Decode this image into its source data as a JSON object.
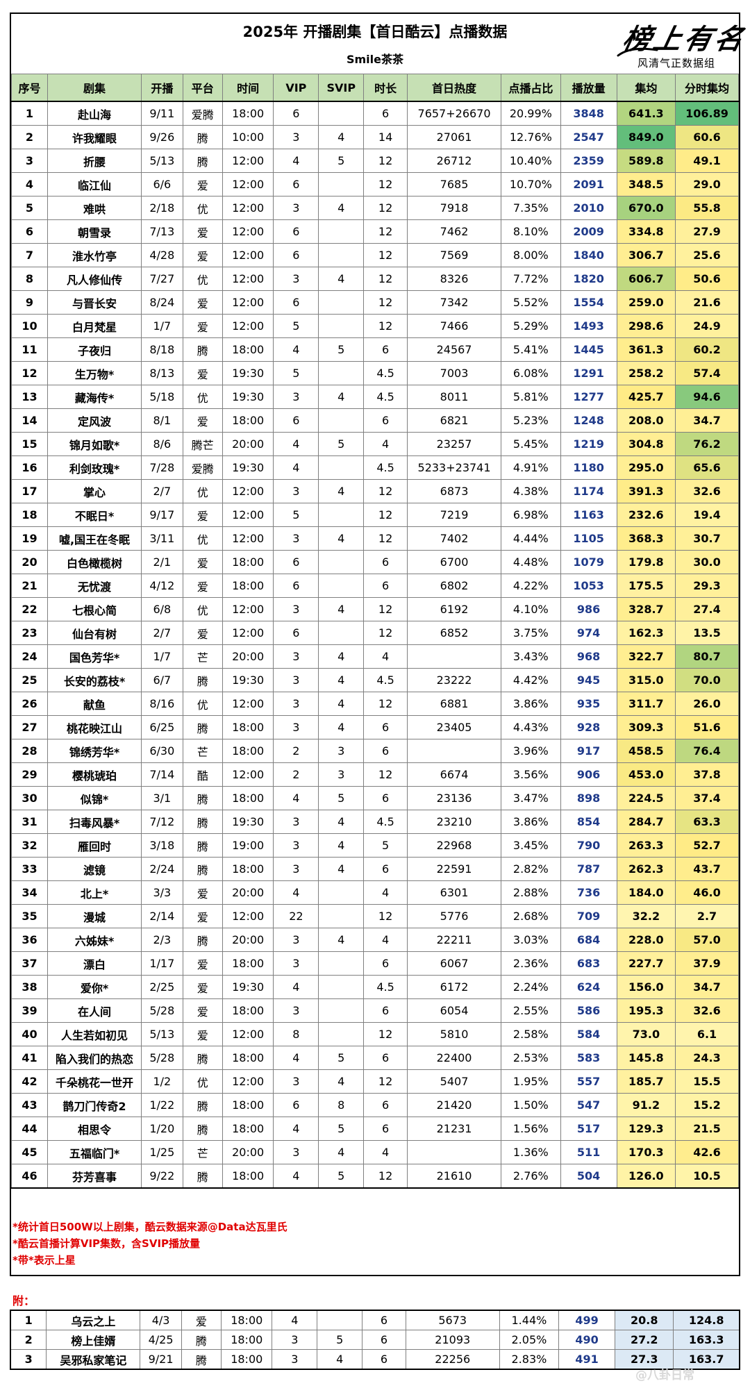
{
  "title": "2025年 开播剧集【首日酷云】点播数据",
  "subtitle": "Smile茶茶",
  "logo": {
    "script_text": "榜上有名",
    "subtitle": "风清气正数据组"
  },
  "headers": [
    "序号",
    "剧集",
    "开播",
    "平台",
    "时间",
    "VIP",
    "SVIP",
    "时长",
    "首日热度",
    "点播占比",
    "播放量",
    "集均",
    "分时集均"
  ],
  "rows": [
    [
      "1",
      "赴山海",
      "9/11",
      "爱腾",
      "18:00",
      "6",
      "",
      "6",
      "7657+26670",
      "20.99%",
      "3848",
      "641.3",
      "106.89"
    ],
    [
      "2",
      "许我耀眼",
      "9/26",
      "腾",
      "10:00",
      "3",
      "4",
      "14",
      "27061",
      "12.76%",
      "2547",
      "849.0",
      "60.6"
    ],
    [
      "3",
      "折腰",
      "5/13",
      "腾",
      "12:00",
      "4",
      "5",
      "12",
      "26712",
      "10.40%",
      "2359",
      "589.8",
      "49.1"
    ],
    [
      "4",
      "临江仙",
      "6/6",
      "爱",
      "12:00",
      "6",
      "",
      "12",
      "7685",
      "10.70%",
      "2091",
      "348.5",
      "29.0"
    ],
    [
      "5",
      "难哄",
      "2/18",
      "优",
      "12:00",
      "3",
      "4",
      "12",
      "7918",
      "7.35%",
      "2010",
      "670.0",
      "55.8"
    ],
    [
      "6",
      "朝雪录",
      "7/13",
      "爱",
      "12:00",
      "6",
      "",
      "12",
      "7462",
      "8.10%",
      "2009",
      "334.8",
      "27.9"
    ],
    [
      "7",
      "淮水竹亭",
      "4/28",
      "爱",
      "12:00",
      "6",
      "",
      "12",
      "7569",
      "8.00%",
      "1840",
      "306.7",
      "25.6"
    ],
    [
      "8",
      "凡人修仙传",
      "7/27",
      "优",
      "12:00",
      "3",
      "4",
      "12",
      "8326",
      "7.72%",
      "1820",
      "606.7",
      "50.6"
    ],
    [
      "9",
      "与晋长安",
      "8/24",
      "爱",
      "12:00",
      "6",
      "",
      "12",
      "7342",
      "5.52%",
      "1554",
      "259.0",
      "21.6"
    ],
    [
      "10",
      "白月梵星",
      "1/7",
      "爱",
      "12:00",
      "5",
      "",
      "12",
      "7466",
      "5.29%",
      "1493",
      "298.6",
      "24.9"
    ],
    [
      "11",
      "子夜归",
      "8/18",
      "腾",
      "18:00",
      "4",
      "5",
      "6",
      "24567",
      "5.41%",
      "1445",
      "361.3",
      "60.2"
    ],
    [
      "12",
      "生万物*",
      "8/13",
      "爱",
      "19:30",
      "5",
      "",
      "4.5",
      "7003",
      "6.08%",
      "1291",
      "258.2",
      "57.4"
    ],
    [
      "13",
      "藏海传*",
      "5/18",
      "优",
      "19:30",
      "3",
      "4",
      "4.5",
      "8011",
      "5.81%",
      "1277",
      "425.7",
      "94.6"
    ],
    [
      "14",
      "定风波",
      "8/1",
      "爱",
      "18:00",
      "6",
      "",
      "6",
      "6821",
      "5.23%",
      "1248",
      "208.0",
      "34.7"
    ],
    [
      "15",
      "锦月如歌*",
      "8/6",
      "腾芒",
      "20:00",
      "4",
      "5",
      "4",
      "23257",
      "5.45%",
      "1219",
      "304.8",
      "76.2"
    ],
    [
      "16",
      "利剑玫瑰*",
      "7/28",
      "爱腾",
      "19:30",
      "4",
      "",
      "4.5",
      "5233+23741",
      "4.91%",
      "1180",
      "295.0",
      "65.6"
    ],
    [
      "17",
      "掌心",
      "2/7",
      "优",
      "12:00",
      "3",
      "4",
      "12",
      "6873",
      "4.38%",
      "1174",
      "391.3",
      "32.6"
    ],
    [
      "18",
      "不眠日*",
      "9/17",
      "爱",
      "12:00",
      "5",
      "",
      "12",
      "7219",
      "6.98%",
      "1163",
      "232.6",
      "19.4"
    ],
    [
      "19",
      "嘘,国王在冬眠",
      "3/11",
      "优",
      "12:00",
      "3",
      "4",
      "12",
      "7402",
      "4.44%",
      "1105",
      "368.3",
      "30.7"
    ],
    [
      "20",
      "白色橄榄树",
      "2/1",
      "爱",
      "18:00",
      "6",
      "",
      "6",
      "6700",
      "4.48%",
      "1079",
      "179.8",
      "30.0"
    ],
    [
      "21",
      "无忧渡",
      "4/12",
      "爱",
      "18:00",
      "6",
      "",
      "6",
      "6802",
      "4.22%",
      "1053",
      "175.5",
      "29.3"
    ],
    [
      "22",
      "七根心简",
      "6/8",
      "优",
      "12:00",
      "3",
      "4",
      "12",
      "6192",
      "4.10%",
      "986",
      "328.7",
      "27.4"
    ],
    [
      "23",
      "仙台有树",
      "2/7",
      "爱",
      "12:00",
      "6",
      "",
      "12",
      "6852",
      "3.75%",
      "974",
      "162.3",
      "13.5"
    ],
    [
      "24",
      "国色芳华*",
      "1/7",
      "芒",
      "20:00",
      "3",
      "4",
      "4",
      "",
      "3.43%",
      "968",
      "322.7",
      "80.7"
    ],
    [
      "25",
      "长安的荔枝*",
      "6/7",
      "腾",
      "19:30",
      "3",
      "4",
      "4.5",
      "23222",
      "4.42%",
      "945",
      "315.0",
      "70.0"
    ],
    [
      "26",
      "献鱼",
      "8/16",
      "优",
      "12:00",
      "3",
      "4",
      "12",
      "6881",
      "3.86%",
      "935",
      "311.7",
      "26.0"
    ],
    [
      "27",
      "桃花映江山",
      "6/25",
      "腾",
      "18:00",
      "3",
      "4",
      "6",
      "23405",
      "4.43%",
      "928",
      "309.3",
      "51.6"
    ],
    [
      "28",
      "锦绣芳华*",
      "6/30",
      "芒",
      "18:00",
      "2",
      "3",
      "6",
      "",
      "3.96%",
      "917",
      "458.5",
      "76.4"
    ],
    [
      "29",
      "樱桃琥珀",
      "7/14",
      "酷",
      "12:00",
      "2",
      "3",
      "12",
      "6674",
      "3.56%",
      "906",
      "453.0",
      "37.8"
    ],
    [
      "30",
      "似锦*",
      "3/1",
      "腾",
      "18:00",
      "4",
      "5",
      "6",
      "23136",
      "3.47%",
      "898",
      "224.5",
      "37.4"
    ],
    [
      "31",
      "扫毒风暴*",
      "7/12",
      "腾",
      "19:30",
      "3",
      "4",
      "4.5",
      "23210",
      "3.86%",
      "854",
      "284.7",
      "63.3"
    ],
    [
      "32",
      "雁回时",
      "3/18",
      "腾",
      "19:00",
      "3",
      "4",
      "5",
      "22968",
      "3.45%",
      "790",
      "263.3",
      "52.7"
    ],
    [
      "33",
      "滤镜",
      "2/24",
      "腾",
      "18:00",
      "3",
      "4",
      "6",
      "22591",
      "2.82%",
      "787",
      "262.3",
      "43.7"
    ],
    [
      "34",
      "北上*",
      "3/3",
      "爱",
      "20:00",
      "4",
      "",
      "4",
      "6301",
      "2.88%",
      "736",
      "184.0",
      "46.0"
    ],
    [
      "35",
      "漫城",
      "2/14",
      "爱",
      "12:00",
      "22",
      "",
      "12",
      "5776",
      "2.68%",
      "709",
      "32.2",
      "2.7"
    ],
    [
      "36",
      "六姊妹*",
      "2/3",
      "腾",
      "20:00",
      "3",
      "4",
      "4",
      "22211",
      "3.03%",
      "684",
      "228.0",
      "57.0"
    ],
    [
      "37",
      "漂白",
      "1/17",
      "爱",
      "18:00",
      "3",
      "",
      "6",
      "6067",
      "2.36%",
      "683",
      "227.7",
      "37.9"
    ],
    [
      "38",
      "爱你*",
      "2/25",
      "爱",
      "19:30",
      "4",
      "",
      "4.5",
      "6172",
      "2.24%",
      "624",
      "156.0",
      "34.7"
    ],
    [
      "39",
      "在人间",
      "5/28",
      "爱",
      "18:00",
      "3",
      "",
      "6",
      "6054",
      "2.55%",
      "586",
      "195.3",
      "32.6"
    ],
    [
      "40",
      "人生若如初见",
      "5/13",
      "爱",
      "12:00",
      "8",
      "",
      "12",
      "5810",
      "2.58%",
      "584",
      "73.0",
      "6.1"
    ],
    [
      "41",
      "陷入我们的热恋",
      "5/28",
      "腾",
      "18:00",
      "4",
      "5",
      "6",
      "22400",
      "2.53%",
      "583",
      "145.8",
      "24.3"
    ],
    [
      "42",
      "千朵桃花一世开",
      "1/2",
      "优",
      "12:00",
      "3",
      "4",
      "12",
      "5407",
      "1.95%",
      "557",
      "185.7",
      "15.5"
    ],
    [
      "43",
      "鹊刀门传奇2",
      "1/22",
      "腾",
      "18:00",
      "6",
      "8",
      "6",
      "21420",
      "1.50%",
      "547",
      "91.2",
      "15.2"
    ],
    [
      "44",
      "相思令",
      "1/20",
      "腾",
      "18:00",
      "4",
      "5",
      "6",
      "21231",
      "1.56%",
      "517",
      "129.3",
      "21.5"
    ],
    [
      "45",
      "五福临门*",
      "1/25",
      "芒",
      "20:00",
      "3",
      "4",
      "4",
      "",
      "1.36%",
      "511",
      "170.3",
      "42.6"
    ],
    [
      "46",
      "芬芳喜事",
      "9/22",
      "腾",
      "18:00",
      "4",
      "5",
      "12",
      "21610",
      "2.76%",
      "504",
      "126.0",
      "10.5"
    ]
  ],
  "notes": [
    "*统计首日500W以上剧集，酷云数据来源@Data达瓦里氏",
    "*酷云首播计算VIP集数，含SVIP播放量",
    "*带*表示上星"
  ],
  "appendix_label": "附：",
  "appendix_rows": [
    [
      "1",
      "乌云之上",
      "4/3",
      "爱",
      "18:00",
      "4",
      "",
      "6",
      "5673",
      "1.44%",
      "499",
      "20.8",
      "124.8"
    ],
    [
      "2",
      "榜上佳婿",
      "4/25",
      "腾",
      "18:00",
      "3",
      "5",
      "6",
      "21093",
      "2.05%",
      "490",
      "27.2",
      "163.3"
    ],
    [
      "3",
      "吴邪私家笔记",
      "9/21",
      "腾",
      "18:00",
      "3",
      "4",
      "6",
      "22256",
      "2.83%",
      "491",
      "27.3",
      "163.7"
    ]
  ],
  "watermark": "@八卦日常",
  "colors": {
    "header_bg": "#c6e0b4",
    "plays_text": "#1f3a8a",
    "note_text": "#e00000",
    "scale_high": "#63be7b",
    "scale_mid": "#ffeb84",
    "scale_low": "#fff5b0",
    "appendix_cell": "#dce9f5"
  }
}
